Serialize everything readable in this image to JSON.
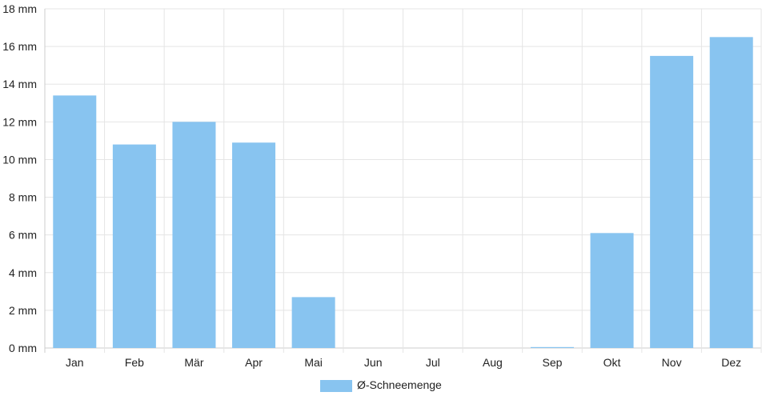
{
  "chart_data": {
    "type": "bar",
    "categories": [
      "Jan",
      "Feb",
      "Mär",
      "Apr",
      "Mai",
      "Jun",
      "Jul",
      "Aug",
      "Sep",
      "Okt",
      "Nov",
      "Dez"
    ],
    "series": [
      {
        "name": "Ø-Schneemenge",
        "values": [
          13.4,
          10.8,
          12.0,
          10.9,
          2.7,
          0,
          0,
          0,
          0.05,
          6.1,
          15.5,
          16.5
        ],
        "color": "#88c4f0"
      }
    ],
    "ylim": [
      0,
      18
    ],
    "yticks": [
      0,
      2,
      4,
      6,
      8,
      10,
      12,
      14,
      16,
      18
    ],
    "y_unit": "mm",
    "grid": true,
    "legend_position": "bottom-center"
  },
  "colors": {
    "bar": "#88c4f0",
    "grid": "#e5e5e5",
    "axis": "#cccccc",
    "text": "#222222"
  }
}
